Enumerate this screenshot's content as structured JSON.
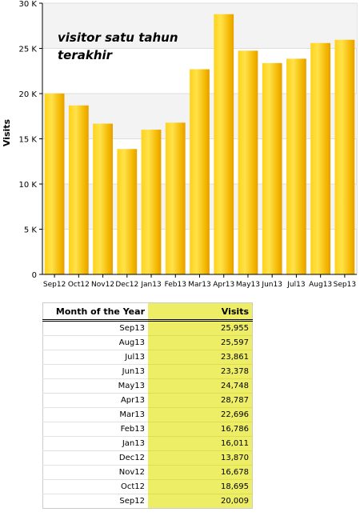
{
  "chart_data": {
    "type": "bar",
    "categories": [
      "Sep12",
      "Oct12",
      "Nov12",
      "Dec12",
      "Jan13",
      "Feb13",
      "Mar13",
      "Apr13",
      "May13",
      "Jun13",
      "Jul13",
      "Aug13",
      "Sep13"
    ],
    "values": [
      20009,
      18695,
      16678,
      13870,
      16011,
      16786,
      22696,
      28787,
      24748,
      23378,
      23861,
      25597,
      25955
    ],
    "ylabel": "Visits",
    "xlabel": "",
    "ylim": [
      0,
      30000
    ],
    "yticks": [
      0,
      5000,
      10000,
      15000,
      20000,
      25000,
      30000
    ],
    "yticklabels": [
      "0",
      "5 K",
      "10 K",
      "15 K",
      "20 K",
      "25 K",
      "30 K"
    ],
    "annotation": [
      "visitor satu tahun",
      "terakhir"
    ],
    "grid": true,
    "bar_color": "#f0b800"
  },
  "table": {
    "headers": [
      "Month of the Year",
      "Visits"
    ],
    "rows": [
      [
        "Sep13",
        "25,955"
      ],
      [
        "Aug13",
        "25,597"
      ],
      [
        "Jul13",
        "23,861"
      ],
      [
        "Jun13",
        "23,378"
      ],
      [
        "May13",
        "24,748"
      ],
      [
        "Apr13",
        "28,787"
      ],
      [
        "Mar13",
        "22,696"
      ],
      [
        "Feb13",
        "16,786"
      ],
      [
        "Jan13",
        "16,011"
      ],
      [
        "Dec12",
        "13,870"
      ],
      [
        "Nov12",
        "16,678"
      ],
      [
        "Oct12",
        "18,695"
      ],
      [
        "Sep12",
        "20,009"
      ]
    ]
  }
}
